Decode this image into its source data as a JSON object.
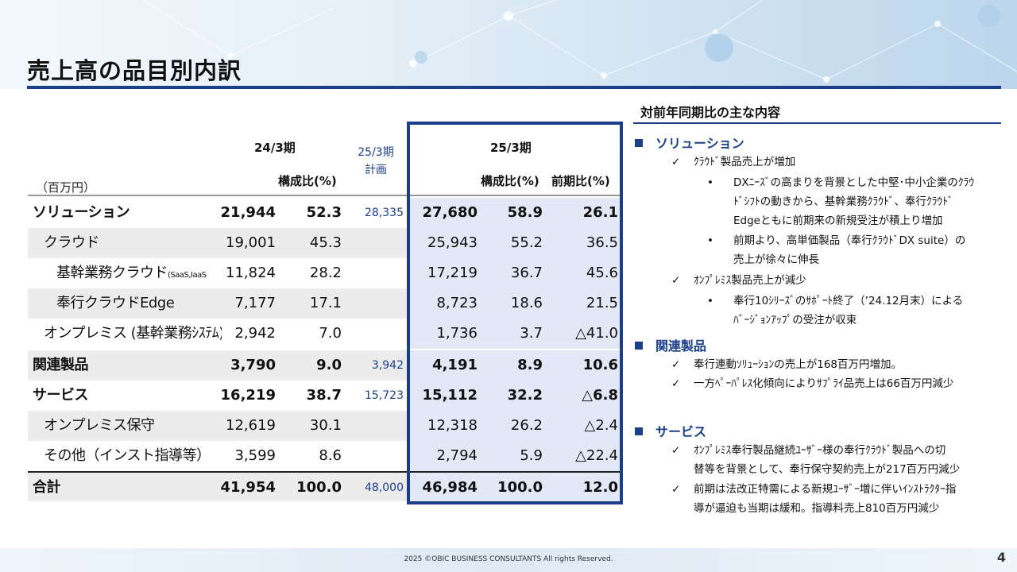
{
  "title": "売上高の品目別内訳",
  "table": {
    "unit": "（百万円）",
    "header": {
      "prev_period": "24/3期",
      "plan": "25/3期\n計画",
      "plan_l1": "25/3期",
      "plan_l2": "計画",
      "cur_period": "25/3期",
      "ratio": "構成比(%)",
      "yoy": "前期比(%)"
    },
    "rows": [
      {
        "label": "ソリューション",
        "prev": "21,944",
        "prev_ratio": "52.3",
        "plan": "28,335",
        "cur": "27,680",
        "cur_ratio": "58.9",
        "yoy": "26.1"
      },
      {
        "label": "クラウド",
        "prev": "19,001",
        "prev_ratio": "45.3",
        "plan": "",
        "cur": "25,943",
        "cur_ratio": "55.2",
        "yoy": "36.5"
      },
      {
        "label": "基幹業務クラウド",
        "label_note": "(SaaS,IaaS",
        "prev": "11,824",
        "prev_ratio": "28.2",
        "plan": "",
        "cur": "17,219",
        "cur_ratio": "36.7",
        "yoy": "45.6"
      },
      {
        "label": "奉行クラウドEdge",
        "prev": "7,177",
        "prev_ratio": "17.1",
        "plan": "",
        "cur": "8,723",
        "cur_ratio": "18.6",
        "yoy": "21.5"
      },
      {
        "label": "オンプレミス (基幹業務ｼｽﾃﾑ)",
        "prev": "2,942",
        "prev_ratio": "7.0",
        "plan": "",
        "cur": "1,736",
        "cur_ratio": "3.7",
        "yoy": "△41.0"
      },
      {
        "label": "関連製品",
        "prev": "3,790",
        "prev_ratio": "9.0",
        "plan": "3,942",
        "cur": "4,191",
        "cur_ratio": "8.9",
        "yoy": "10.6"
      },
      {
        "label": "サービス",
        "prev": "16,219",
        "prev_ratio": "38.7",
        "plan": "15,723",
        "cur": "15,112",
        "cur_ratio": "32.2",
        "yoy": "△6.8"
      },
      {
        "label": "オンプレミス保守",
        "prev": "12,619",
        "prev_ratio": "30.1",
        "plan": "",
        "cur": "12,318",
        "cur_ratio": "26.2",
        "yoy": "△2.4"
      },
      {
        "label": "その他（インスト指導等）",
        "prev": "3,599",
        "prev_ratio": "8.6",
        "plan": "",
        "cur": "2,794",
        "cur_ratio": "5.9",
        "yoy": "△22.4"
      },
      {
        "label": "合計",
        "prev": "41,954",
        "prev_ratio": "100.0",
        "plan": "48,000",
        "cur": "46,984",
        "cur_ratio": "100.0",
        "yoy": "12.0"
      }
    ]
  },
  "panel": {
    "title": "対前年同期比の主な内容",
    "sections": [
      {
        "heading": "ソリューション",
        "points": [
          {
            "text": "ｸﾗｳﾄﾞ製品売上が増加",
            "bullets": [
              [
                "DXﾆｰｽﾞの高まりを背景とした中堅･中小企業のｸﾗｳ",
                "ﾄﾞｼﾌﾄの動きから、基幹業務ｸﾗｳﾄﾞ、奉行ｸﾗｳﾄﾞ",
                "Edgeともに前期来の新規受注が積上り増加"
              ],
              [
                "前期より、高単価製品（奉行ｸﾗｳﾄﾞDX suite）の",
                "売上が徐々に伸長"
              ]
            ]
          },
          {
            "text": "ｵﾝﾌﾟﾚﾐｽ製品売上が減少",
            "bullets": [
              [
                "奉行10ｼﾘｰｽﾞのｻﾎﾟｰﾄ終了（’24.12月末）による",
                "ﾊﾞｰｼﾞｮﾝｱｯﾌﾟの受注が収束"
              ]
            ]
          }
        ]
      },
      {
        "heading": "関連製品",
        "points": [
          {
            "text": "奉行連動ｿﾘｭｰｼｮﾝの売上が168百万円増加。"
          },
          {
            "text": "一方ﾍﾟｰﾊﾟﾚｽ化傾向によりｻﾌﾟﾗｲ品売上は66百万円減少"
          }
        ]
      },
      {
        "heading": "サービス",
        "points": [
          {
            "lines": [
              "ｵﾝﾌﾟﾚﾐｽ奉行製品継続ﾕｰｻﾞｰ様の奉行ｸﾗｳﾄﾞ製品への切",
              "替等を背景として、奉行保守契約売上が217百万円減少"
            ]
          },
          {
            "lines": [
              "前期は法改正特需による新規ﾕｰｻﾞｰ増に伴いｲﾝｽﾄﾗｸﾀｰ指",
              "導が逼迫も当期は緩和。指導料売上810百万円減少"
            ]
          }
        ]
      }
    ],
    "check_mark": "✓",
    "bullet_mark": "•"
  },
  "footer": {
    "copyright": "2025 ©OBIC BUSINESS CONSULTANTS All rights Reserved.",
    "page": "4"
  },
  "colors": {
    "accent": "#1c3f8a",
    "shade": "#ececec",
    "band": "#e2e8f6"
  }
}
